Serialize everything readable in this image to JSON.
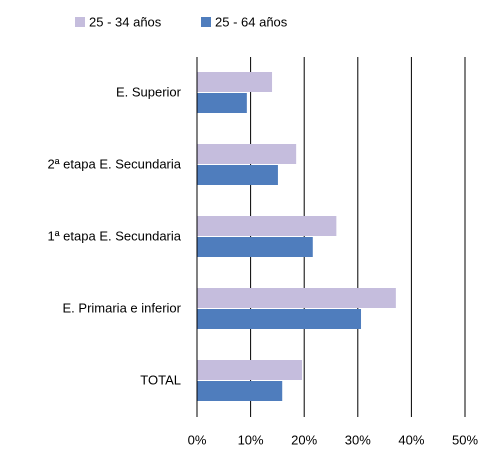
{
  "chart_data": {
    "type": "hbar",
    "categories": [
      "E. Superior",
      "2ª etapa E. Secundaria",
      "1ª etapa E. Secundaria",
      "E. Primaria e inferior",
      "TOTAL"
    ],
    "series": [
      {
        "name": "25 - 34 años",
        "color": "#c5bddd",
        "values": [
          14.0,
          18.5,
          26.0,
          37.1,
          19.6
        ]
      },
      {
        "name": "25 - 64 años",
        "color": "#4f7dbd",
        "values": [
          9.3,
          15.1,
          21.6,
          30.6,
          15.9
        ]
      }
    ],
    "xlim": [
      0,
      50
    ],
    "xticks": [
      {
        "value": 0,
        "label": "0%"
      },
      {
        "value": 10,
        "label": "10%"
      },
      {
        "value": 20,
        "label": "20%"
      },
      {
        "value": 30,
        "label": "30%"
      },
      {
        "value": 40,
        "label": "40%"
      },
      {
        "value": 50,
        "label": "50%"
      }
    ],
    "grid": true,
    "legend": "top"
  }
}
